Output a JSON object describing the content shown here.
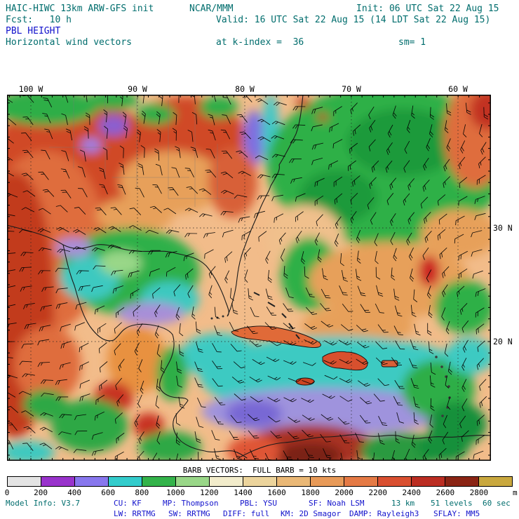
{
  "colors": {
    "teal": "#006d6d",
    "blue": "#1212cc"
  },
  "header": {
    "model_title": "HAIC-HIWC 13km ARW-GFS init",
    "center": "NCAR/MMM",
    "init": "Init: 06 UTC Sat 22 Aug 15",
    "fcst": "Fcst:   10 h",
    "valid": "Valid: 16 UTC Sat 22 Aug 15 (14 LDT Sat 22 Aug 15)",
    "field": "PBL HEIGHT",
    "subtitle": "Horizontal wind vectors",
    "level": "at k-index =  36",
    "smoothing": "sm= 1"
  },
  "map": {
    "x_ticks": [
      "100 W",
      "90 W",
      "80 W",
      "70 W",
      "60 W"
    ],
    "y_ticks": [
      "30 N",
      "20 N"
    ]
  },
  "legend": {
    "barb_note": "BARB VECTORS:  FULL BARB = 10 kts"
  },
  "colorbar": {
    "ticks": [
      "0",
      "200",
      "400",
      "600",
      "800",
      "1000",
      "1200",
      "1400",
      "1600",
      "1800",
      "2000",
      "2200",
      "2400",
      "2600",
      "2800"
    ],
    "unit": "m",
    "colors": [
      "#e4e4e4",
      "#9933cc",
      "#8877ee",
      "#33cccc",
      "#33b34a",
      "#99d788",
      "#f2eccb",
      "#ecd49c",
      "#eab876",
      "#e89a58",
      "#e57a45",
      "#d94f30",
      "#bb2d22",
      "#8a2414",
      "#c9a83e"
    ]
  },
  "footer": {
    "model_info": "Model Info: V3.7",
    "cu": "CU: KF",
    "mp": "MP: Thompson",
    "pbl": "PBL: YSU",
    "sf": "SF: Noah LSM",
    "res": "13 km",
    "levels": "51 levels",
    "step": "60 sec",
    "lw": "LW: RRTMG",
    "sw": "SW: RRTMG",
    "diff": "DIFF: full",
    "km": "KM: 2D Smagor",
    "damp": "DAMP: Rayleigh3",
    "sflay": "SFLAY: MM5"
  }
}
